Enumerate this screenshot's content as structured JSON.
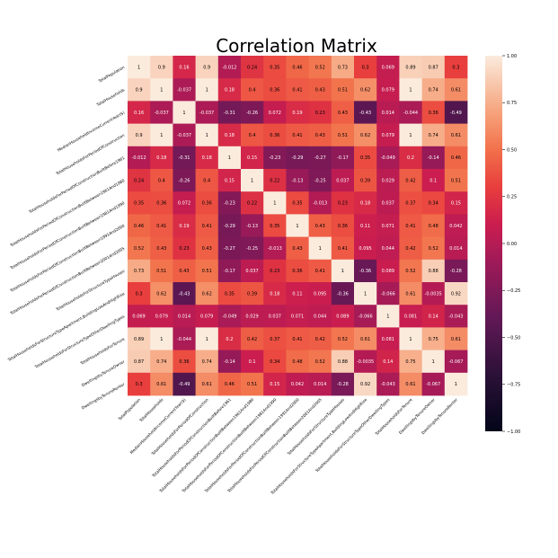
{
  "chart_data": {
    "type": "heatmap",
    "title": "Correlation Matrix",
    "labels": [
      "TotalPopulation",
      "TotalHouseholds",
      "MedianHouseholdIncomeCurrentYear($)",
      "TotalHouseholdsForPeriodOfConstruction",
      "TotalHouseholdsForPeriodOfConstructionBuiltBefore1961",
      "TotalHouseholdsForPeriodOfConstructionBuiltBetween1961And1980",
      "TotalHouseholdsForPeriodOfConstructionBuiltBetween1981And1990",
      "TotalHouseholdsForPeriodOfConstructionBuiltBetween1991And2000",
      "TotalHouseholdsForPeriodOfConstructionBuiltBetween2001And2005",
      "TotalHouseholdsForStructureTypeHouses",
      "TotalHouseholdsForStructureTypeApartment,BuildingLowAndHighRise",
      "TotalHouseholdsForStructureTypeOtherDwellingTypes",
      "TotalHouseholdsForTenure",
      "DwellingsbyTenureOwner",
      "DwellingsbyTenureRenter"
    ],
    "matrix": [
      [
        "1",
        "0.9",
        "0.16",
        "0.9",
        "-0.012",
        "0.24",
        "0.35",
        "0.46",
        "0.52",
        "0.73",
        "0.3",
        "0.069",
        "0.89",
        "0.87",
        "0.3"
      ],
      [
        "0.9",
        "1",
        "-0.037",
        "1",
        "0.18",
        "0.4",
        "0.36",
        "0.41",
        "0.43",
        "0.51",
        "0.62",
        "0.079",
        "1",
        "0.74",
        "0.61"
      ],
      [
        "0.16",
        "-0.037",
        "1",
        "-0.037",
        "-0.31",
        "-0.26",
        "0.072",
        "0.19",
        "0.23",
        "0.43",
        "-0.43",
        "0.014",
        "-0.044",
        "0.36",
        "-0.49"
      ],
      [
        "0.9",
        "1",
        "-0.037",
        "1",
        "0.18",
        "0.4",
        "0.36",
        "0.41",
        "0.43",
        "0.51",
        "0.62",
        "0.079",
        "1",
        "0.74",
        "0.61"
      ],
      [
        "-0.012",
        "0.18",
        "-0.31",
        "0.18",
        "1",
        "0.15",
        "-0.23",
        "-0.29",
        "-0.27",
        "-0.17",
        "0.35",
        "-0.049",
        "0.2",
        "-0.14",
        "0.46"
      ],
      [
        "0.24",
        "0.4",
        "-0.26",
        "0.4",
        "0.15",
        "1",
        "0.22",
        "-0.13",
        "-0.25",
        "0.037",
        "0.39",
        "0.029",
        "0.42",
        "0.1",
        "0.51"
      ],
      [
        "0.35",
        "0.36",
        "0.072",
        "0.36",
        "-0.23",
        "0.22",
        "1",
        "0.35",
        "-0.013",
        "0.23",
        "0.18",
        "0.037",
        "0.37",
        "0.34",
        "0.15"
      ],
      [
        "0.46",
        "0.41",
        "0.19",
        "0.41",
        "-0.29",
        "-0.13",
        "0.35",
        "1",
        "0.43",
        "0.36",
        "0.11",
        "0.071",
        "0.41",
        "0.48",
        "0.042"
      ],
      [
        "0.52",
        "0.43",
        "0.23",
        "0.43",
        "-0.27",
        "-0.25",
        "-0.013",
        "0.43",
        "1",
        "0.41",
        "0.095",
        "0.044",
        "0.42",
        "0.52",
        "0.014"
      ],
      [
        "0.73",
        "0.51",
        "0.43",
        "0.51",
        "-0.17",
        "0.037",
        "0.23",
        "0.36",
        "0.41",
        "1",
        "-0.36",
        "0.089",
        "0.52",
        "0.88",
        "-0.28"
      ],
      [
        "0.3",
        "0.62",
        "-0.43",
        "0.62",
        "0.35",
        "0.39",
        "0.18",
        "0.11",
        "0.095",
        "-0.36",
        "1",
        "-0.066",
        "0.61",
        "-0.0035",
        "0.92"
      ],
      [
        "0.069",
        "0.079",
        "0.014",
        "0.079",
        "-0.049",
        "0.029",
        "0.037",
        "0.071",
        "0.044",
        "0.089",
        "-0.066",
        "1",
        "0.081",
        "0.14",
        "-0.043"
      ],
      [
        "0.89",
        "1",
        "-0.044",
        "1",
        "0.2",
        "0.42",
        "0.37",
        "0.41",
        "0.42",
        "0.52",
        "0.61",
        "0.081",
        "1",
        "0.75",
        "0.61"
      ],
      [
        "0.87",
        "0.74",
        "0.36",
        "0.74",
        "-0.14",
        "0.1",
        "0.34",
        "0.48",
        "0.52",
        "0.88",
        "-0.0035",
        "0.14",
        "0.75",
        "1",
        "-0.067"
      ],
      [
        "0.3",
        "0.61",
        "-0.49",
        "0.61",
        "0.46",
        "0.51",
        "0.15",
        "0.042",
        "0.014",
        "-0.28",
        "0.92",
        "-0.043",
        "0.61",
        "-0.067",
        "1"
      ]
    ],
    "vmin": -1,
    "vmax": 1,
    "colorbar_ticks": [
      "1.00",
      "0.75",
      "0.50",
      "0.25",
      "0.00",
      "−0.25",
      "−0.50",
      "−0.75",
      "−1.00"
    ],
    "colormap": "rocket",
    "grid": false,
    "legend": "colorbar-right"
  }
}
